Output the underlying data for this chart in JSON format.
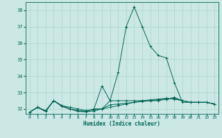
{
  "xlabel": "Humidex (Indice chaleur)",
  "background_color": "#cce8e4",
  "grid_color": "#aad4cc",
  "line_color": "#006655",
  "xlim": [
    -0.5,
    23.5
  ],
  "ylim": [
    31.7,
    38.5
  ],
  "yticks": [
    32,
    33,
    34,
    35,
    36,
    37,
    38
  ],
  "xticks": [
    0,
    1,
    2,
    3,
    4,
    5,
    6,
    7,
    8,
    9,
    10,
    11,
    12,
    13,
    14,
    15,
    16,
    17,
    18,
    19,
    20,
    21,
    22,
    23
  ],
  "series": [
    [
      31.8,
      32.1,
      31.85,
      32.5,
      32.2,
      32.0,
      31.9,
      31.85,
      32.0,
      33.4,
      32.5,
      34.2,
      37.0,
      38.2,
      37.0,
      35.8,
      35.25,
      35.1,
      33.6,
      32.4,
      32.4,
      32.4,
      32.4,
      32.3
    ],
    [
      31.8,
      32.1,
      31.9,
      32.5,
      32.2,
      32.1,
      32.0,
      31.9,
      31.95,
      32.0,
      32.5,
      32.5,
      32.5,
      32.5,
      32.5,
      32.5,
      32.5,
      32.6,
      32.7,
      32.5,
      32.4,
      32.4,
      32.4,
      32.3
    ],
    [
      31.8,
      32.1,
      31.85,
      32.5,
      32.15,
      32.0,
      31.85,
      31.82,
      31.88,
      32.0,
      32.25,
      32.3,
      32.35,
      32.4,
      32.45,
      32.5,
      32.55,
      32.6,
      32.65,
      32.5,
      32.4,
      32.4,
      32.4,
      32.3
    ],
    [
      31.8,
      32.1,
      31.85,
      32.5,
      32.2,
      32.0,
      31.9,
      31.85,
      32.0,
      32.0,
      32.1,
      32.2,
      32.3,
      32.4,
      32.5,
      32.55,
      32.6,
      32.65,
      32.6,
      32.5,
      32.4,
      32.4,
      32.4,
      32.3
    ]
  ]
}
